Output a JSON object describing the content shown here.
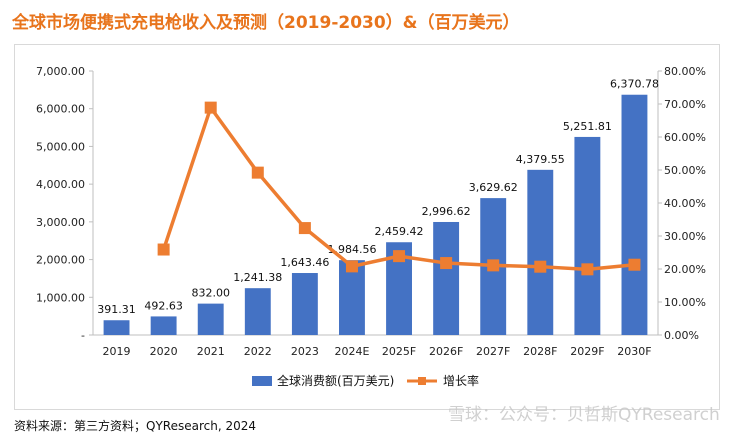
{
  "title": "全球市场便携式充电枪收入及预测（2019-2030）&（百万美元）",
  "source": "资料来源：第三方资料；QYResearch, 2024",
  "watermark": "雪球：公众号：贝哲斯QYResearch",
  "colors": {
    "bar": "#4472c4",
    "line": "#ed7d31",
    "title": "#e8741c"
  },
  "chart_data": {
    "type": "bar+line",
    "categories": [
      "2019",
      "2020",
      "2021",
      "2022",
      "2023",
      "2024E",
      "2025F",
      "2026F",
      "2027F",
      "2028F",
      "2029F",
      "2030F"
    ],
    "series": [
      {
        "name": "全球消费额(百万美元)",
        "type": "bar",
        "axis": "left",
        "values": [
          391.31,
          492.63,
          832.0,
          1241.38,
          1643.46,
          1984.56,
          2459.42,
          2996.62,
          3629.62,
          4379.55,
          5251.81,
          6370.78
        ],
        "labels": [
          "391.31",
          "492.63",
          "832.00",
          "1,241.38",
          "1,643.46",
          "1,984.56",
          "2,459.42",
          "2,996.62",
          "3,629.62",
          "4,379.55",
          "5,251.81",
          "6,370.78"
        ]
      },
      {
        "name": "增长率",
        "type": "line",
        "axis": "right",
        "values": [
          null,
          25.9,
          68.9,
          49.2,
          32.4,
          20.8,
          23.9,
          21.8,
          21.1,
          20.7,
          19.9,
          21.3
        ]
      }
    ],
    "left_axis": {
      "min": 0,
      "max": 7000,
      "step": 1000,
      "tick_labels": [
        "-",
        "1,000.00",
        "2,000.00",
        "3,000.00",
        "4,000.00",
        "5,000.00",
        "6,000.00",
        "7,000.00"
      ]
    },
    "right_axis": {
      "min": 0,
      "max": 80,
      "step": 10,
      "tick_labels": [
        "0.00%",
        "10.00%",
        "20.00%",
        "30.00%",
        "40.00%",
        "50.00%",
        "60.00%",
        "70.00%",
        "80.00%"
      ]
    },
    "grid": false,
    "legend": "bottom"
  }
}
